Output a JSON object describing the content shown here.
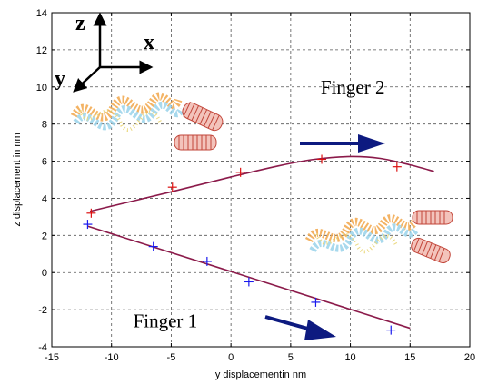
{
  "chart_data": {
    "type": "line",
    "xlabel": "y displacementin nm",
    "ylabel": "z displacement in nm",
    "xlim": [
      -15,
      20
    ],
    "ylim": [
      -4,
      14
    ],
    "xticks": [
      -15,
      -10,
      -5,
      0,
      5,
      10,
      15,
      20
    ],
    "yticks": [
      -4,
      -2,
      0,
      2,
      4,
      6,
      8,
      10,
      12,
      14
    ],
    "x_tick_labels": [
      "-15",
      "-10",
      "-5",
      "0",
      "5",
      "10",
      "15",
      "20"
    ],
    "y_tick_labels": [
      "-4",
      "-2",
      "0",
      "2",
      "4",
      "6",
      "8",
      "10",
      "12",
      "14"
    ],
    "grid": "dashed",
    "series": [
      {
        "name": "Finger 2",
        "color": "#dd1111",
        "marker": "+",
        "points": [
          [
            -11.7,
            3.2
          ],
          [
            -4.9,
            4.6
          ],
          [
            0.8,
            5.4
          ],
          [
            7.6,
            6.1
          ],
          [
            13.9,
            5.7
          ]
        ],
        "fit_color": "#8b1a4a",
        "fit": [
          [
            -11.8,
            3.3
          ],
          [
            -5,
            4.35
          ],
          [
            0,
            5.15
          ],
          [
            4,
            5.75
          ],
          [
            7,
            6.1
          ],
          [
            10,
            6.25
          ],
          [
            12.5,
            6.15
          ],
          [
            15,
            5.8
          ],
          [
            17,
            5.45
          ]
        ]
      },
      {
        "name": "Finger 1",
        "color": "#1a1aee",
        "marker": "+",
        "points": [
          [
            -12.0,
            2.6
          ],
          [
            -6.5,
            1.4
          ],
          [
            -2.0,
            0.6
          ],
          [
            1.5,
            -0.5
          ],
          [
            7.1,
            -1.6
          ],
          [
            13.4,
            -3.1
          ]
        ],
        "fit_color": "#8b1a4a",
        "fit": [
          [
            -12,
            2.5
          ],
          [
            15,
            -3.0
          ]
        ]
      }
    ],
    "annotations": [
      {
        "text": "Finger 2",
        "x": 10.2,
        "y": 10
      },
      {
        "text": "Finger 1",
        "x": -5.5,
        "y": -2.6
      }
    ],
    "inset_axes_labels": [
      "z",
      "x",
      "y"
    ],
    "arrow_color": "#0d1a80"
  }
}
